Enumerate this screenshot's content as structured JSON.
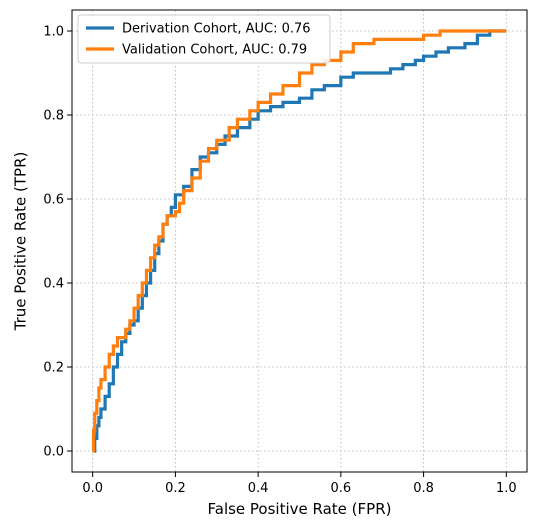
{
  "chart_data": {
    "type": "line",
    "title": "",
    "xlabel": "False Positive Rate (FPR)",
    "ylabel": "True Positive Rate (TPR)",
    "xlim": [
      -0.05,
      1.05
    ],
    "ylim": [
      -0.05,
      1.05
    ],
    "grid": true,
    "legend_position": "top-left",
    "x_ticks": [
      "0.0",
      "0.2",
      "0.4",
      "0.6",
      "0.8",
      "1.0"
    ],
    "y_ticks": [
      "0.0",
      "0.2",
      "0.4",
      "0.6",
      "0.8",
      "1.0"
    ],
    "series": [
      {
        "name": "Derivation Cohort, AUC: 0.76",
        "color": "#1f77b4",
        "points": [
          [
            0.0,
            0.0
          ],
          [
            0.005,
            0.03
          ],
          [
            0.01,
            0.06
          ],
          [
            0.015,
            0.08
          ],
          [
            0.02,
            0.1
          ],
          [
            0.03,
            0.13
          ],
          [
            0.04,
            0.16
          ],
          [
            0.05,
            0.2
          ],
          [
            0.06,
            0.23
          ],
          [
            0.07,
            0.26
          ],
          [
            0.08,
            0.28
          ],
          [
            0.09,
            0.3
          ],
          [
            0.1,
            0.31
          ],
          [
            0.11,
            0.34
          ],
          [
            0.12,
            0.37
          ],
          [
            0.13,
            0.4
          ],
          [
            0.14,
            0.43
          ],
          [
            0.15,
            0.47
          ],
          [
            0.16,
            0.5
          ],
          [
            0.17,
            0.54
          ],
          [
            0.18,
            0.56
          ],
          [
            0.19,
            0.58
          ],
          [
            0.2,
            0.61
          ],
          [
            0.22,
            0.63
          ],
          [
            0.24,
            0.67
          ],
          [
            0.26,
            0.7
          ],
          [
            0.28,
            0.71
          ],
          [
            0.3,
            0.73
          ],
          [
            0.32,
            0.75
          ],
          [
            0.35,
            0.77
          ],
          [
            0.38,
            0.79
          ],
          [
            0.4,
            0.81
          ],
          [
            0.43,
            0.82
          ],
          [
            0.46,
            0.83
          ],
          [
            0.5,
            0.84
          ],
          [
            0.53,
            0.86
          ],
          [
            0.56,
            0.87
          ],
          [
            0.6,
            0.89
          ],
          [
            0.63,
            0.9
          ],
          [
            0.68,
            0.9
          ],
          [
            0.72,
            0.91
          ],
          [
            0.75,
            0.92
          ],
          [
            0.78,
            0.93
          ],
          [
            0.8,
            0.94
          ],
          [
            0.83,
            0.95
          ],
          [
            0.86,
            0.96
          ],
          [
            0.9,
            0.97
          ],
          [
            0.93,
            0.99
          ],
          [
            0.96,
            1.0
          ],
          [
            1.0,
            1.0
          ]
        ]
      },
      {
        "name": "Validation Cohort, AUC: 0.79",
        "color": "#ff7f0e",
        "points": [
          [
            0.0,
            0.0
          ],
          [
            0.002,
            0.05
          ],
          [
            0.005,
            0.09
          ],
          [
            0.01,
            0.12
          ],
          [
            0.015,
            0.15
          ],
          [
            0.02,
            0.17
          ],
          [
            0.03,
            0.2
          ],
          [
            0.04,
            0.23
          ],
          [
            0.05,
            0.25
          ],
          [
            0.06,
            0.27
          ],
          [
            0.08,
            0.29
          ],
          [
            0.09,
            0.31
          ],
          [
            0.1,
            0.34
          ],
          [
            0.11,
            0.37
          ],
          [
            0.12,
            0.4
          ],
          [
            0.13,
            0.43
          ],
          [
            0.14,
            0.46
          ],
          [
            0.15,
            0.49
          ],
          [
            0.16,
            0.51
          ],
          [
            0.17,
            0.54
          ],
          [
            0.18,
            0.56
          ],
          [
            0.2,
            0.57
          ],
          [
            0.21,
            0.59
          ],
          [
            0.22,
            0.62
          ],
          [
            0.24,
            0.65
          ],
          [
            0.26,
            0.69
          ],
          [
            0.28,
            0.72
          ],
          [
            0.3,
            0.74
          ],
          [
            0.33,
            0.77
          ],
          [
            0.35,
            0.79
          ],
          [
            0.38,
            0.81
          ],
          [
            0.4,
            0.83
          ],
          [
            0.43,
            0.85
          ],
          [
            0.46,
            0.87
          ],
          [
            0.5,
            0.9
          ],
          [
            0.53,
            0.92
          ],
          [
            0.56,
            0.93
          ],
          [
            0.6,
            0.95
          ],
          [
            0.63,
            0.97
          ],
          [
            0.68,
            0.98
          ],
          [
            0.72,
            0.98
          ],
          [
            0.76,
            0.98
          ],
          [
            0.8,
            0.99
          ],
          [
            0.84,
            1.0
          ],
          [
            0.9,
            1.0
          ],
          [
            1.0,
            1.0
          ]
        ]
      }
    ]
  }
}
